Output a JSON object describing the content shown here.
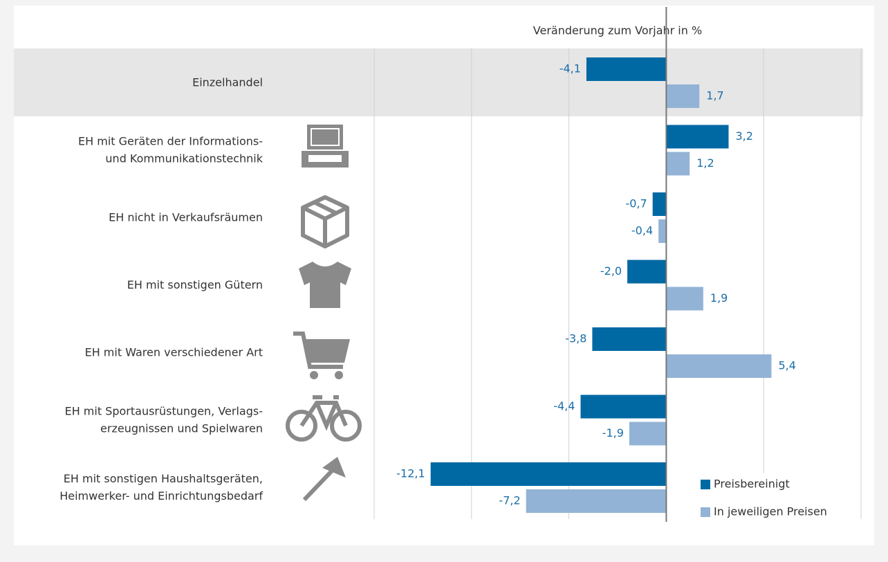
{
  "chart_data": {
    "type": "hbar",
    "title": "Veränderung zum Vorjahr in %",
    "categories": [
      [
        "Einzelhandel"
      ],
      [
        "EH mit Geräten der Informations-",
        "und Kommunikationstechnik"
      ],
      [
        "EH nicht in Verkaufsräumen"
      ],
      [
        "EH mit sonstigen Gütern"
      ],
      [
        "EH mit Waren verschiedener Art"
      ],
      [
        "EH mit Sportausrüstungen, Verlags-",
        "erzeugnissen und Spielwaren"
      ],
      [
        "EH mit sonstigen Haushaltsgeräten,",
        "Heimwerker- und Einrichtungsbedarf"
      ]
    ],
    "series": [
      {
        "name": "Preisbereinigt",
        "color": "#0069a3",
        "values": [
          -4.1,
          3.2,
          -0.7,
          -2.0,
          -3.8,
          -4.4,
          -12.1
        ],
        "value_labels": [
          "-4,1",
          "3,2",
          "-0,7",
          "-2,0",
          "-3,8",
          "-4,4",
          "-12,1"
        ]
      },
      {
        "name": "In jeweiligen Preisen",
        "color": "#93b3d6",
        "values": [
          1.7,
          1.2,
          -0.4,
          1.9,
          5.4,
          -1.9,
          -7.2
        ],
        "value_labels": [
          "1,7",
          "1,2",
          "-0,4",
          "1,9",
          "5,4",
          "-1,9",
          "-7,2"
        ]
      }
    ],
    "xlim": [
      -15,
      10
    ],
    "xticks": [
      -15,
      -10,
      -5,
      0,
      5,
      10
    ],
    "grid": true,
    "legend": "lower right"
  }
}
